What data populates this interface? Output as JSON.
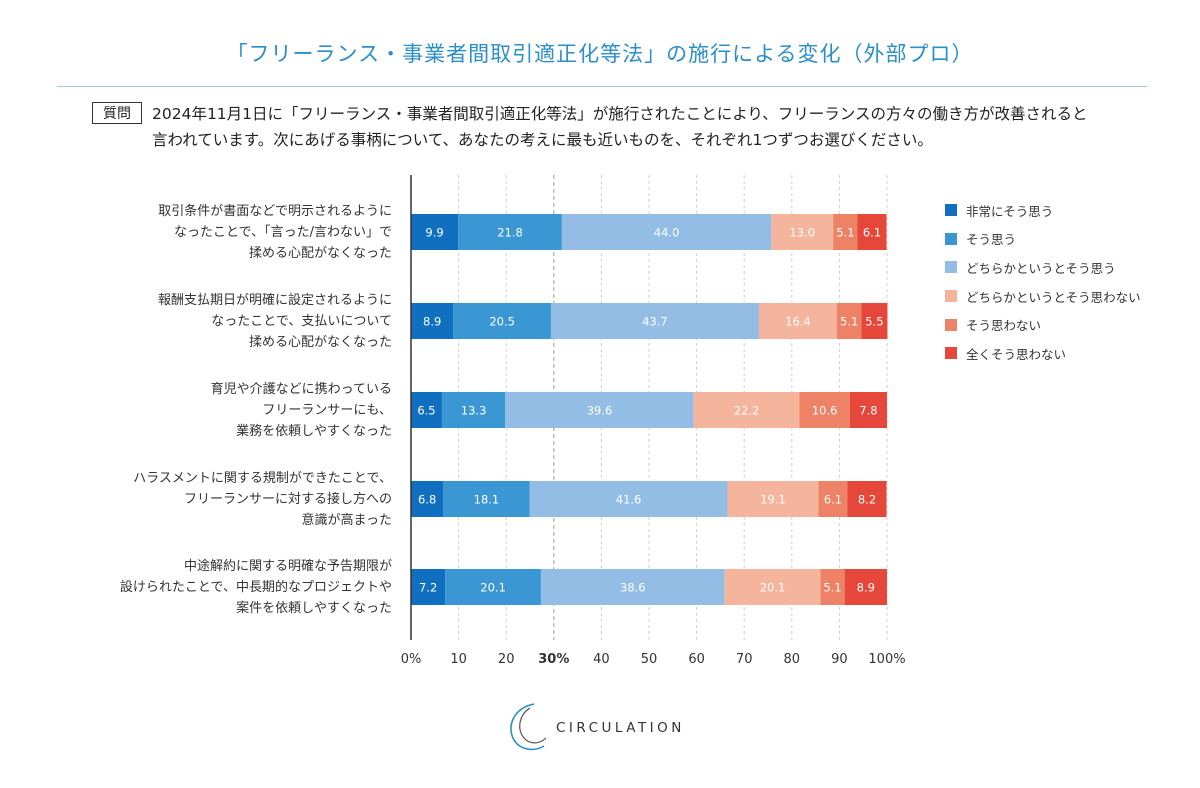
{
  "title": "「フリーランス・事業者間取引適正化等法」の施行による変化（外部プロ）",
  "question": {
    "badge": "質問",
    "line1": "2024年11月1日に「フリーランス・事業者間取引適正化等法」が施行されたことにより、フリーランスの方々の働き方が改善されると",
    "line2": "言われています。次にあげる事柄について、あなたの考えに最も近いものを、それぞれ1つずつお選びください。"
  },
  "colors": {
    "series": [
      "#1070bf",
      "#3a97d3",
      "#94bde6",
      "#f5b49c",
      "#ee8266",
      "#e5483a"
    ],
    "title": "#2a8fc8"
  },
  "chart_data": {
    "type": "bar",
    "orientation": "horizontal",
    "stacked": true,
    "categories": [
      [
        "取引条件が書面などで明示されるように",
        "なったことで、「言った/言わない」で",
        "揉める心配がなくなった"
      ],
      [
        "報酬支払期日が明確に設定されるように",
        "なったことで、支払いについて",
        "揉める心配がなくなった"
      ],
      [
        "育児や介護などに携わっている",
        "フリーランサーにも、",
        "業務を依頼しやすくなった"
      ],
      [
        "ハラスメントに関する規制ができたことで、",
        "フリーランサーに対する接し方への",
        "意識が高まった"
      ],
      [
        "中途解約に関する明確な予告期限が",
        "設けられたことで、中長期的なプロジェクトや",
        "案件を依頼しやすくなった"
      ]
    ],
    "series": [
      {
        "name": "非常にそう思う",
        "values": [
          9.9,
          8.9,
          6.5,
          6.8,
          7.2
        ]
      },
      {
        "name": "そう思う",
        "values": [
          21.8,
          20.5,
          13.3,
          18.1,
          20.1
        ]
      },
      {
        "name": "どちらかというとそう思う",
        "values": [
          44.0,
          43.7,
          39.6,
          41.6,
          38.6
        ]
      },
      {
        "name": "どちらかというとそう思わない",
        "values": [
          13.0,
          16.4,
          22.2,
          19.1,
          20.1
        ]
      },
      {
        "name": "そう思わない",
        "values": [
          5.1,
          5.1,
          10.6,
          6.1,
          5.1
        ]
      },
      {
        "name": "全くそう思わない",
        "values": [
          6.1,
          5.5,
          7.8,
          8.2,
          8.9
        ]
      }
    ],
    "value_labels": [
      [
        "9.9",
        "21.8",
        "44.0",
        "13.0",
        "5.1",
        "6.1"
      ],
      [
        "8.9",
        "20.5",
        "43.7",
        "16.4",
        "5.1",
        "5.5"
      ],
      [
        "6.5",
        "13.3",
        "39.6",
        "22.2",
        "10.6",
        "7.8"
      ],
      [
        "6.8",
        "18.1",
        "41.6",
        "19.1",
        "6.1",
        "8.2"
      ],
      [
        "7.2",
        "20.1",
        "38.6",
        "20.1",
        "5.1",
        "8.9"
      ]
    ],
    "x_ticks": [
      "0%",
      "10",
      "20",
      "30%",
      "40",
      "50",
      "60",
      "70",
      "80",
      "90",
      "100%"
    ],
    "x_tick_values": [
      0,
      10,
      20,
      30,
      40,
      50,
      60,
      70,
      80,
      90,
      100
    ],
    "highlight_tick": 30,
    "xlim": [
      0,
      100
    ],
    "grid": true,
    "legend_position": "right"
  },
  "logo": {
    "text": "CIRCULATION"
  }
}
